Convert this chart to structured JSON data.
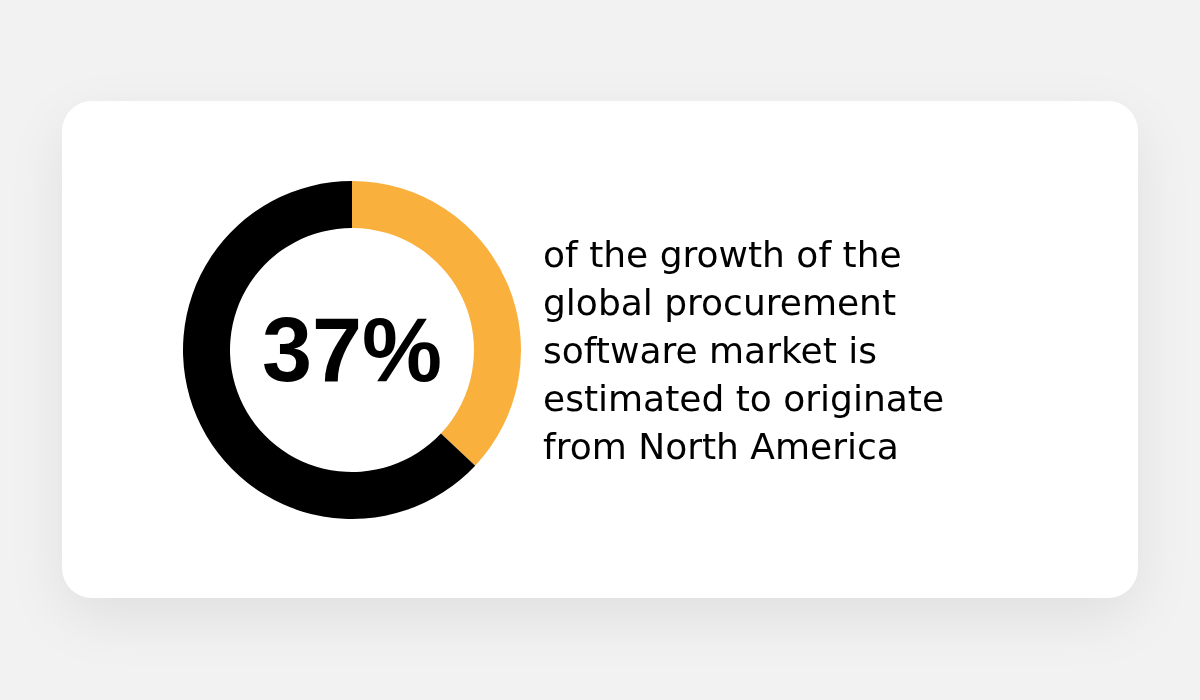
{
  "chart_data": {
    "type": "donut",
    "categories": [
      null,
      null
    ],
    "values": [
      37,
      63
    ],
    "colors": [
      "#f9b03d",
      "#000000"
    ],
    "value_labels": [
      "37%",
      null
    ],
    "annotations": [
      "of the growth of the global procurement software market is estimated to originate from North America"
    ]
  }
}
